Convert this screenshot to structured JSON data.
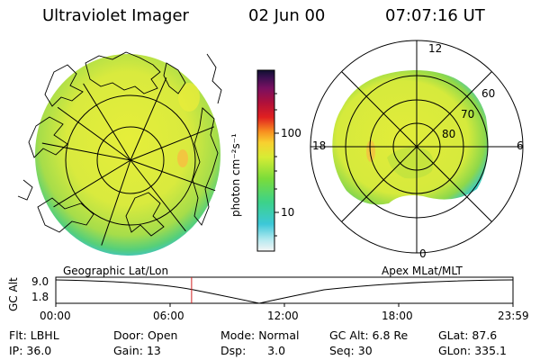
{
  "header": {
    "instrument": "Ultraviolet Imager",
    "date": "02 Jun 00",
    "time": "07:07:16 UT"
  },
  "colorbar": {
    "unit_label": "photon cm⁻²s⁻¹",
    "tick_labels": [
      "100",
      "10"
    ]
  },
  "polar_plot": {
    "clock_labels": [
      "12",
      "18",
      "6",
      "0"
    ],
    "lat_labels": [
      "60",
      "70",
      "80"
    ]
  },
  "timeline": {
    "left_title": "Geographic Lat/Lon",
    "right_title": "Apex MLat/MLT",
    "y_axis_label": "GC Alt",
    "y_ticks": [
      "9.0",
      "1.8"
    ],
    "x_ticks": [
      "00:00",
      "06:00",
      "12:00",
      "18:00",
      "23:59"
    ],
    "current_marker_fraction": 0.297
  },
  "status": {
    "row1": [
      {
        "label": "Flt:",
        "value": "LBHL"
      },
      {
        "label": "Door:",
        "value": "Open"
      },
      {
        "label": "Mode:",
        "value": "Normal"
      },
      {
        "label": "GC Alt:",
        "value": "6.8 Re"
      },
      {
        "label": "GLat:",
        "value": "87.6"
      }
    ],
    "row2": [
      {
        "label": "IP:",
        "value": "36.0"
      },
      {
        "label": "Gain:",
        "value": "13"
      },
      {
        "label": "Dsp:",
        "value": "3.0"
      },
      {
        "label": "Seq:",
        "value": "30"
      },
      {
        "label": "GLon:",
        "value": "335.1"
      }
    ]
  }
}
